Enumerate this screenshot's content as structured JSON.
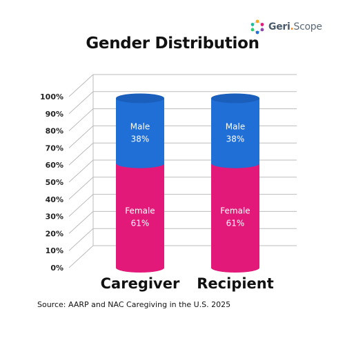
{
  "logo": {
    "brand": "Geri",
    "separator": ".",
    "product": "Scope"
  },
  "source": "Source: AARP and NAC Caregiving in the U.S. 2025",
  "colors": {
    "male": "#1f6fd6",
    "female": "#e3197a",
    "grid": "#bbbbbb"
  },
  "chart_data": {
    "type": "bar",
    "stacked": true,
    "title": "Gender Distribution",
    "categories": [
      "Caregiver",
      "Recipient"
    ],
    "series": [
      {
        "name": "Female",
        "values": [
          61,
          61
        ],
        "labels": [
          "61%",
          "61%"
        ]
      },
      {
        "name": "Male",
        "values": [
          38,
          38
        ],
        "labels": [
          "38%",
          "38%"
        ]
      }
    ],
    "yticks": [
      "0%",
      "10%",
      "20%",
      "30%",
      "40%",
      "50%",
      "60%",
      "70%",
      "80%",
      "90%",
      "100%"
    ],
    "ylim": [
      0,
      100
    ],
    "grid": true
  }
}
